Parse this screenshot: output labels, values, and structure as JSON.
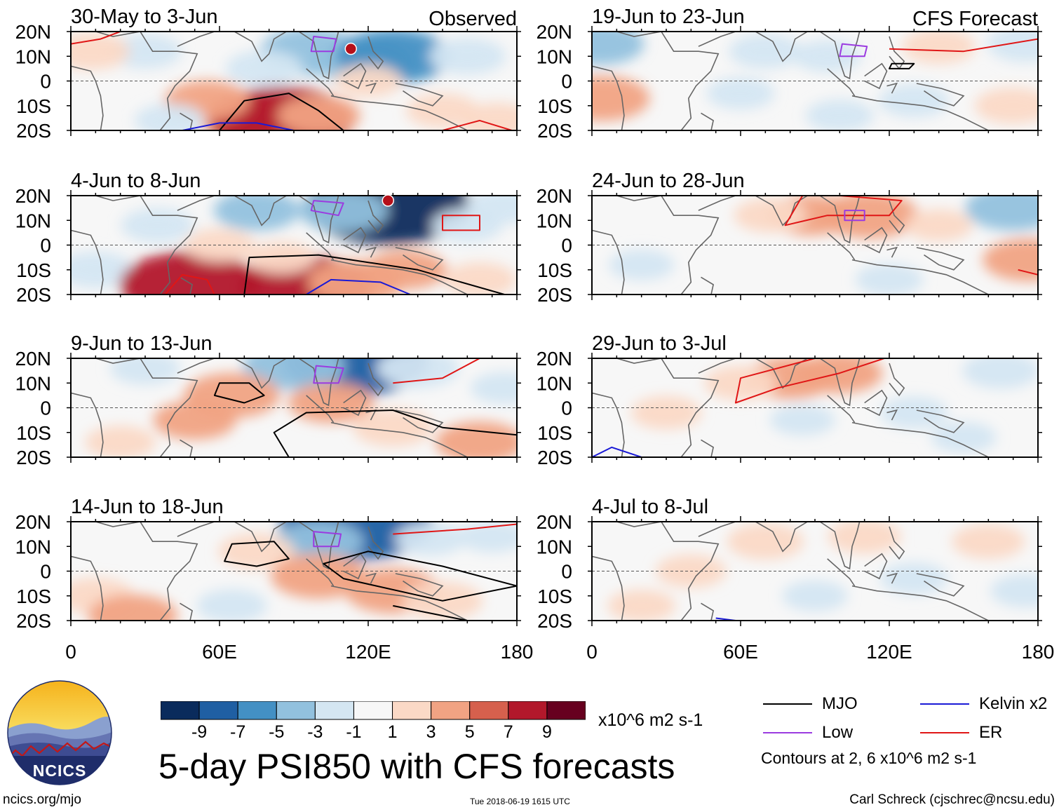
{
  "chart_data": {
    "type": "heatmap",
    "title": "5-day PSI850 with CFS forecasts",
    "units": "x10^6 m2 s-1",
    "observed_label": "Observed",
    "forecast_label": "CFS Forecast",
    "y_ticks": [
      "20N",
      "10N",
      "0",
      "10S",
      "20S"
    ],
    "x_ticks": [
      "0",
      "60E",
      "120E",
      "180"
    ],
    "x_range": [
      0,
      180
    ],
    "y_range": [
      -20,
      20
    ],
    "colorbar": {
      "ticks": [
        "-9",
        "-7",
        "-5",
        "-3",
        "-1",
        "1",
        "3",
        "5",
        "7",
        "9"
      ],
      "colors": [
        "#0a2b5c",
        "#1f5fa3",
        "#4390c4",
        "#92c1de",
        "#d4e6f2",
        "#f7f7f7",
        "#fbd9c6",
        "#f1a383",
        "#d6604d",
        "#b2182b",
        "#67001f"
      ]
    },
    "panels": [
      {
        "period": "30-May to 3-Jun",
        "group": "observed",
        "anomalies": [
          {
            "x": 97,
            "y": 12,
            "v": -4.5
          },
          {
            "x": 118,
            "y": 8,
            "v": -4.2
          },
          {
            "x": 130,
            "y": 10,
            "v": -5.5
          },
          {
            "x": 78,
            "y": 5,
            "v": -2.5
          },
          {
            "x": 160,
            "y": 10,
            "v": -2.5
          },
          {
            "x": 30,
            "y": 12,
            "v": -2.2
          },
          {
            "x": 8,
            "y": 12,
            "v": 2.6
          },
          {
            "x": 72,
            "y": -16,
            "v": 4.5
          },
          {
            "x": 85,
            "y": -16,
            "v": 7.8
          },
          {
            "x": 55,
            "y": -8,
            "v": 3.2
          },
          {
            "x": 100,
            "y": -14,
            "v": 3.0
          },
          {
            "x": 150,
            "y": -12,
            "v": 2.2
          },
          {
            "x": 172,
            "y": -16,
            "v": 2.4
          },
          {
            "x": 40,
            "y": -16,
            "v": -2.0
          },
          {
            "x": 120,
            "y": 0,
            "v": 1.8
          }
        ]
      },
      {
        "period": "4-Jun to 8-Jun",
        "group": "observed",
        "anomalies": [
          {
            "x": 128,
            "y": 16,
            "v": -9.5
          },
          {
            "x": 75,
            "y": 14,
            "v": -3.2
          },
          {
            "x": 110,
            "y": 14,
            "v": -3.5
          },
          {
            "x": 160,
            "y": 8,
            "v": -2.0
          },
          {
            "x": 175,
            "y": 16,
            "v": -2.5
          },
          {
            "x": 35,
            "y": 8,
            "v": -2.2
          },
          {
            "x": 10,
            "y": -10,
            "v": -2.5
          },
          {
            "x": 48,
            "y": -16,
            "v": 7.5
          },
          {
            "x": 95,
            "y": -17,
            "v": 7.0
          },
          {
            "x": 115,
            "y": -15,
            "v": 4.0
          },
          {
            "x": 135,
            "y": -10,
            "v": 3.0
          },
          {
            "x": 165,
            "y": -14,
            "v": 2.2
          },
          {
            "x": 60,
            "y": 0,
            "v": 2.0
          },
          {
            "x": 85,
            "y": -5,
            "v": 1.8
          }
        ]
      },
      {
        "period": "9-Jun to 13-Jun",
        "group": "observed",
        "anomalies": [
          {
            "x": 115,
            "y": 19,
            "v": -8.0
          },
          {
            "x": 90,
            "y": 17,
            "v": -4.5
          },
          {
            "x": 140,
            "y": 16,
            "v": -3.0
          },
          {
            "x": 30,
            "y": 16,
            "v": -2.0
          },
          {
            "x": 65,
            "y": 5,
            "v": 4.0
          },
          {
            "x": 50,
            "y": -5,
            "v": 3.0
          },
          {
            "x": 105,
            "y": 2,
            "v": 3.2
          },
          {
            "x": 130,
            "y": -8,
            "v": 2.8
          },
          {
            "x": 165,
            "y": -14,
            "v": 3.4
          },
          {
            "x": 20,
            "y": -14,
            "v": 2.0
          },
          {
            "x": 175,
            "y": 8,
            "v": -1.8
          }
        ]
      },
      {
        "period": "14-Jun to 18-Jun",
        "group": "observed",
        "anomalies": [
          {
            "x": 115,
            "y": 19,
            "v": -8.5
          },
          {
            "x": 100,
            "y": 12,
            "v": -3.5
          },
          {
            "x": 145,
            "y": 13,
            "v": -2.0
          },
          {
            "x": 75,
            "y": 8,
            "v": 2.5
          },
          {
            "x": 100,
            "y": -2,
            "v": 4.0
          },
          {
            "x": 130,
            "y": -8,
            "v": 4.0
          },
          {
            "x": 150,
            "y": -12,
            "v": 2.8
          },
          {
            "x": 10,
            "y": -10,
            "v": 2.5
          },
          {
            "x": 25,
            "y": -18,
            "v": 3.5
          },
          {
            "x": 65,
            "y": -14,
            "v": -2.0
          },
          {
            "x": 170,
            "y": 14,
            "v": -1.8
          }
        ]
      },
      {
        "period": "19-Jun to 23-Jun",
        "group": "forecast",
        "anomalies": [
          {
            "x": 3,
            "y": 15,
            "v": -3.5
          },
          {
            "x": 70,
            "y": 12,
            "v": -2.2
          },
          {
            "x": 95,
            "y": 10,
            "v": -1.8
          },
          {
            "x": 140,
            "y": 14,
            "v": 2.2
          },
          {
            "x": 175,
            "y": 15,
            "v": -2.5
          },
          {
            "x": 4,
            "y": -7,
            "v": 4.0
          },
          {
            "x": 60,
            "y": -5,
            "v": -1.8
          },
          {
            "x": 130,
            "y": -8,
            "v": -2.0
          },
          {
            "x": 170,
            "y": -10,
            "v": 2.5
          },
          {
            "x": 100,
            "y": -14,
            "v": -1.8
          }
        ]
      },
      {
        "period": "24-Jun to 28-Jun",
        "group": "forecast",
        "anomalies": [
          {
            "x": 88,
            "y": 12,
            "v": 3.2
          },
          {
            "x": 112,
            "y": 12,
            "v": 4.2
          },
          {
            "x": 72,
            "y": 12,
            "v": 2.2
          },
          {
            "x": 170,
            "y": 15,
            "v": -4.0
          },
          {
            "x": 176,
            "y": -6,
            "v": 3.6
          },
          {
            "x": 140,
            "y": 8,
            "v": 1.8
          },
          {
            "x": 120,
            "y": -14,
            "v": -1.8
          },
          {
            "x": 20,
            "y": -8,
            "v": -1.6
          }
        ]
      },
      {
        "period": "29-Jun to 3-Jul",
        "group": "forecast",
        "anomalies": [
          {
            "x": 80,
            "y": 12,
            "v": 3.5
          },
          {
            "x": 100,
            "y": 14,
            "v": 3.2
          },
          {
            "x": 60,
            "y": 10,
            "v": 2.2
          },
          {
            "x": 165,
            "y": 15,
            "v": -2.5
          },
          {
            "x": 130,
            "y": -2,
            "v": -1.8
          },
          {
            "x": 30,
            "y": -2,
            "v": 2.0
          },
          {
            "x": 150,
            "y": -12,
            "v": -1.6
          },
          {
            "x": 85,
            "y": -5,
            "v": -1.6
          }
        ]
      },
      {
        "period": "4-Jul to 8-Jul",
        "group": "forecast",
        "anomalies": [
          {
            "x": 70,
            "y": 12,
            "v": 2.5
          },
          {
            "x": 110,
            "y": 14,
            "v": 2.2
          },
          {
            "x": 40,
            "y": 0,
            "v": 2.0
          },
          {
            "x": 160,
            "y": 12,
            "v": 2.2
          },
          {
            "x": 130,
            "y": -3,
            "v": -1.8
          },
          {
            "x": 175,
            "y": -8,
            "v": -2.0
          },
          {
            "x": 90,
            "y": -10,
            "v": -1.6
          },
          {
            "x": 20,
            "y": -14,
            "v": 1.8
          }
        ]
      }
    ]
  },
  "legend": {
    "items": [
      {
        "label": "MJO",
        "color": "#000000"
      },
      {
        "label": "Kelvin x2",
        "color": "#1a1ad6"
      },
      {
        "label": "Low",
        "color": "#9b3be0"
      },
      {
        "label": "ER",
        "color": "#e01616"
      }
    ],
    "contour_note": "Contours at 2, 6 x10^6 m2 s-1"
  },
  "logo": {
    "text": "NCICS"
  },
  "footer": {
    "site": "ncics.org/mjo",
    "timestamp": "Tue 2018-06-19 1615 UTC",
    "author": "Carl Schreck (cjschrec@ncsu.edu)"
  }
}
